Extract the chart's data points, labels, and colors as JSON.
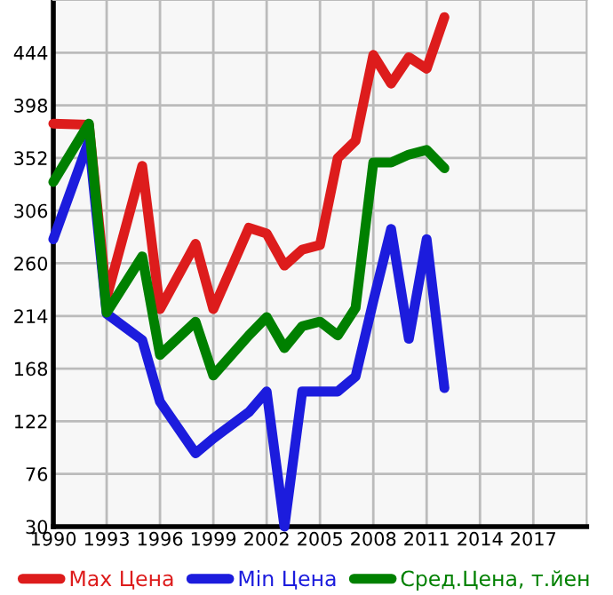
{
  "chart_data": {
    "type": "line",
    "x": [
      1990,
      1992,
      1993,
      1995,
      1996,
      1998,
      1999,
      2001,
      2002,
      2003,
      2004,
      2005,
      2006,
      2007,
      2008,
      2009,
      2010,
      2011,
      2012
    ],
    "series": [
      {
        "name": "Max Цена",
        "color": "#dd1c1c",
        "values": [
          382,
          381,
          230,
          345,
          220,
          277,
          220,
          291,
          286,
          258,
          272,
          276,
          352,
          367,
          442,
          417,
          440,
          430,
          475
        ]
      },
      {
        "name": "Min Цена",
        "color": "#1c1cdd",
        "values": [
          281,
          367,
          216,
          193,
          139,
          94,
          107,
          130,
          148,
          30,
          148,
          148,
          148,
          161,
          227,
          290,
          194,
          281,
          151
        ]
      },
      {
        "name": "Сред.Цена, т.йен",
        "color": "#008000",
        "values": [
          331,
          382,
          217,
          266,
          180,
          209,
          162,
          197,
          213,
          186,
          205,
          209,
          197,
          221,
          348,
          348,
          355,
          359,
          343
        ]
      }
    ],
    "xlim": [
      1990,
      2020
    ],
    "xticks": [
      1990,
      1993,
      1996,
      1999,
      2002,
      2005,
      2008,
      2011,
      2014,
      2017
    ],
    "ylim": [
      30,
      490
    ],
    "yticks": [
      30,
      76,
      122,
      168,
      214,
      260,
      306,
      352,
      398,
      444
    ],
    "grid": true,
    "legend": "bottom",
    "marker": "none",
    "line_style": "solid"
  }
}
